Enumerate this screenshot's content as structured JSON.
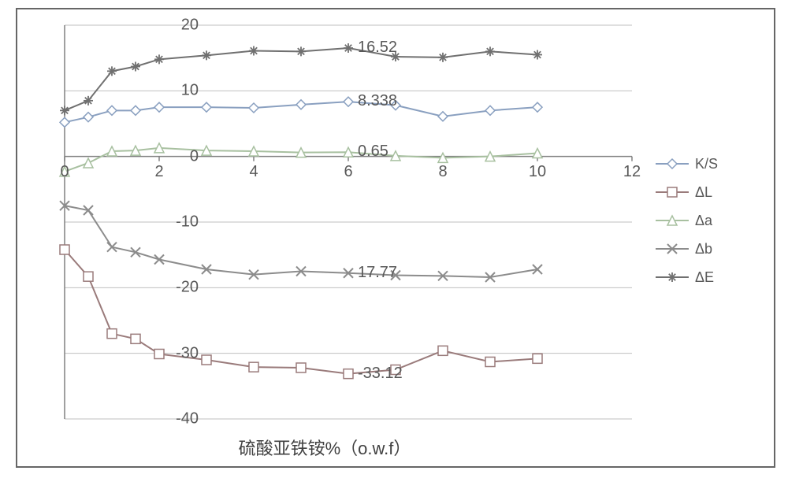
{
  "chart": {
    "type": "line",
    "xlabel": "硫酸亚铁铵%（o.w.f）",
    "xlabel_fontsize": 22,
    "tick_fontsize": 20,
    "xlim": [
      0,
      12
    ],
    "ylim": [
      -40,
      20
    ],
    "xtick_step": 2,
    "ytick_step": 10,
    "xticks": [
      0,
      2,
      4,
      6,
      8,
      10,
      12
    ],
    "yticks": [
      -40,
      -30,
      -20,
      -10,
      0,
      10,
      20
    ],
    "background_color": "#ffffff",
    "grid_color": "#bfbfbf",
    "axis_color": "#808080",
    "border_color": "#666666",
    "line_width": 2,
    "marker_size": 6,
    "x": [
      0,
      0.5,
      1,
      1.5,
      2,
      3,
      4,
      5,
      6,
      7,
      8,
      9,
      10
    ],
    "series": [
      {
        "name": "K/S",
        "marker": "diamond",
        "color": "#8aa0c0",
        "y": [
          5.2,
          6.0,
          7.0,
          7.0,
          7.5,
          7.5,
          7.4,
          7.9,
          8.338,
          7.8,
          6.1,
          7.0,
          7.5
        ],
        "label_point": {
          "x": 6,
          "y": 8.338,
          "text": "8.338"
        }
      },
      {
        "name": "ΔL",
        "marker": "square",
        "color": "#9a7b7b",
        "y": [
          -14.2,
          -18.3,
          -27.0,
          -27.8,
          -30.1,
          -31.0,
          -32.1,
          -32.2,
          -33.12,
          -32.5,
          -29.6,
          -31.3,
          -30.8
        ],
        "label_point": {
          "x": 6,
          "y": -33.12,
          "text": "-33.12"
        }
      },
      {
        "name": "Δa",
        "marker": "triangle",
        "color": "#a8c0a0",
        "y": [
          -2.3,
          -1.0,
          0.8,
          0.9,
          1.3,
          0.9,
          0.8,
          0.6,
          0.65,
          0.1,
          -0.2,
          0.0,
          0.5
        ],
        "label_point": {
          "x": 6,
          "y": 0.65,
          "text": "0.65"
        }
      },
      {
        "name": "Δb",
        "marker": "x",
        "color": "#8c8c8c",
        "y": [
          -7.5,
          -8.2,
          -13.8,
          -14.6,
          -15.7,
          -17.2,
          -18.0,
          -17.5,
          -17.77,
          -18.1,
          -18.2,
          -18.4,
          -17.2
        ],
        "label_point": {
          "x": 6,
          "y": -17.77,
          "text": "17.77"
        }
      },
      {
        "name": "ΔE",
        "marker": "star",
        "color": "#707070",
        "y": [
          7.0,
          8.5,
          13.0,
          13.7,
          14.8,
          15.4,
          16.1,
          16.0,
          16.52,
          15.2,
          15.1,
          16.0,
          15.5
        ],
        "label_point": {
          "x": 6,
          "y": 16.52,
          "text": "16.52"
        }
      }
    ]
  }
}
